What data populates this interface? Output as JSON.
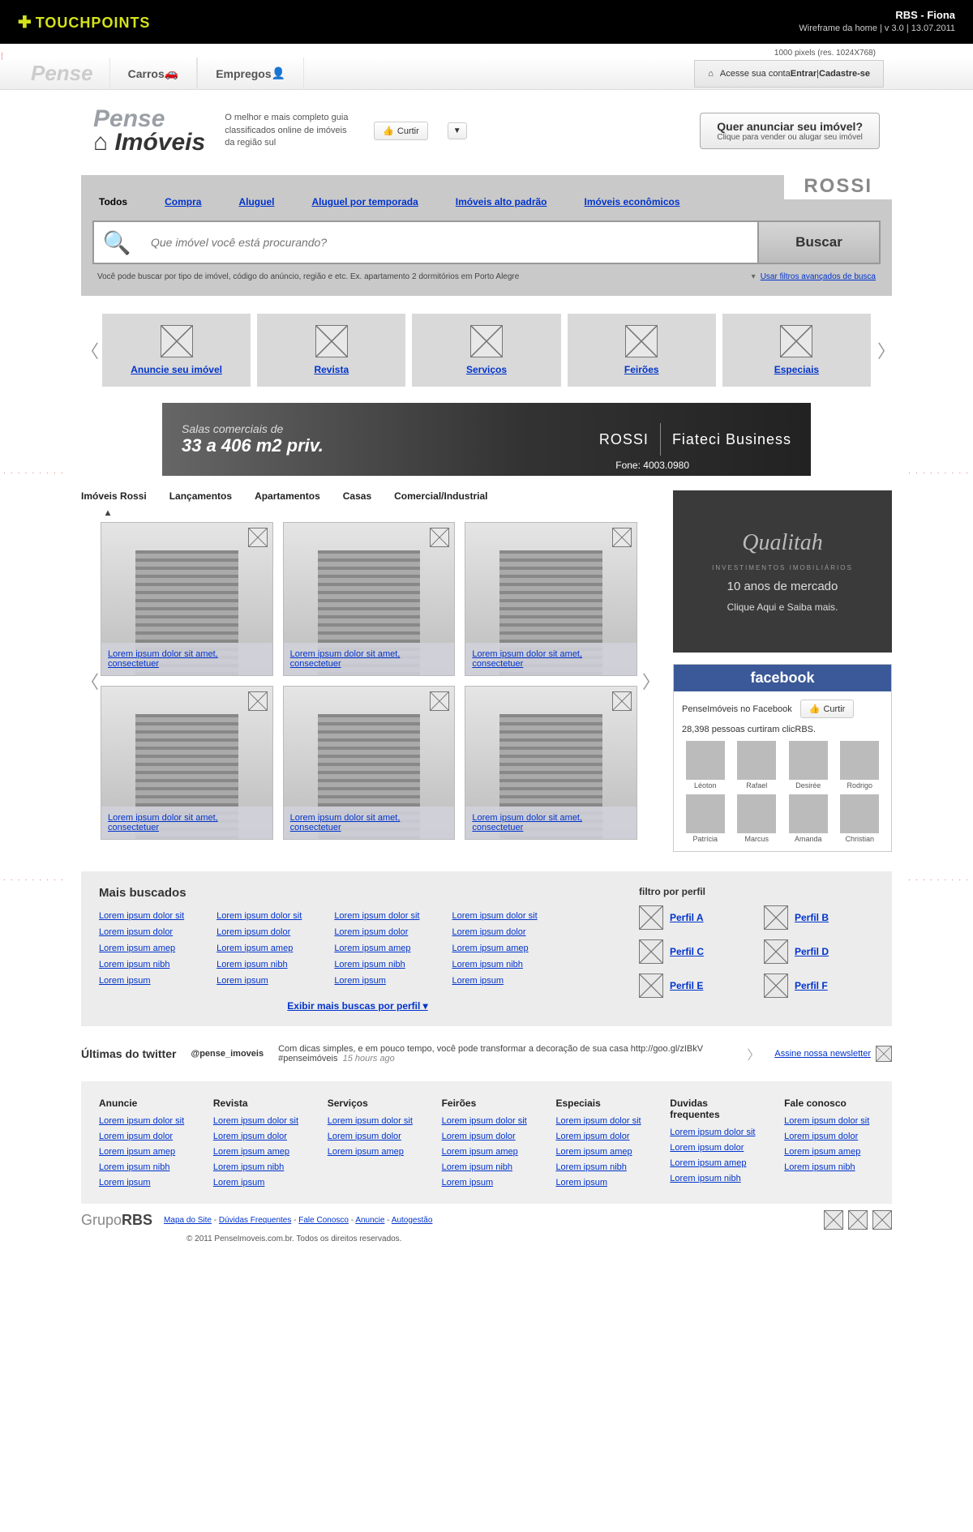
{
  "blackbar": {
    "brand": "TOUCHPOINTS",
    "right_title": "RBS - Fiona",
    "right_sub": "Wireframe da home | v 3.0 | 13.07.2011"
  },
  "pxhint": "1000 pixels (res. 1024X768)",
  "tabs": {
    "main": "Pense",
    "carros": "Carros",
    "empregos": "Empregos"
  },
  "account": {
    "pre": "Acesse sua conta ",
    "entrar": "Entrar",
    "sep": " | ",
    "cadastre": "Cadastre-se"
  },
  "logo": {
    "l1": "Pense",
    "l2": "Imóveis"
  },
  "slogan": "O melhor e mais completo guia classificados online de imóveis da região sul",
  "curtir": "Curtir",
  "anunciar": {
    "t1": "Quer anunciar seu imóvel?",
    "t2": "Clique para vender ou alugar seu imóvel"
  },
  "rossi": "ROSSI",
  "cats": [
    "Todos",
    "Compra",
    "Aluguel",
    "Aluguel por temporada",
    "Imóveis alto padrão",
    "Imóveis econômicos"
  ],
  "search": {
    "placeholder": "Que imóvel você está procurando?",
    "button": "Buscar",
    "hint": "Você pode buscar por tipo de imóvel, código do anúncio, região e etc. Ex. apartamento 2 dormitórios em Porto Alegre",
    "adv": "Usar filtros avançados de busca"
  },
  "promos": [
    "Anuncie seu imóvel",
    "Revista",
    "Serviços",
    "Feirões",
    "Especiais"
  ],
  "banner": {
    "line1": "Salas comerciais de",
    "line2": "33 a 406 m2 priv.",
    "brand": "ROSSI",
    "name": "Fiateci Business",
    "fone": "Fone: 4003.0980"
  },
  "subtabs": [
    "Imóveis Rossi",
    "Lançamentos",
    "Apartamentos",
    "Casas",
    "Comercial/Industrial"
  ],
  "card_caption": "Lorem ipsum dolor sit amet, consectetuer",
  "sidead": {
    "brand": "Qualitah",
    "sub": "INVESTIMENTOS IMOBILIÁRIOS",
    "yrs": "10 anos de mercado",
    "cta": "Clique Aqui e Saiba mais."
  },
  "fb": {
    "title": "facebook",
    "line": "PenseImóveis no Facebook",
    "curtir": "Curtir",
    "count": "28,398 pessoas curtiram clicRBS.",
    "names": [
      "Léoton",
      "Rafael",
      "Desirée",
      "Rodrigo",
      "Patrícia",
      "Marcus",
      "Amanda",
      "Christian"
    ]
  },
  "mb": {
    "title": "Mais buscados",
    "col": [
      "Lorem ipsum dolor sit",
      "Lorem ipsum dolor",
      "Lorem ipsum amep",
      "Lorem ipsum nibh",
      "Lorem ipsum"
    ],
    "exibir": "Exibir mais buscas por perfil  ▾",
    "filtro_title": "filtro por perfil",
    "perfis": [
      "Perfil A",
      "Perfil B",
      "Perfil C",
      "Perfil D",
      "Perfil E",
      "Perfil F"
    ]
  },
  "tw": {
    "title": "Últimas do twitter",
    "handle": "@pense_imoveis",
    "body": "Com dicas simples, e em pouco tempo, você pode transformar a decoração de sua casa http://goo.gl/zIBkV #penseimóveis",
    "ago": "15 hours ago",
    "news": "Assine nossa newsletter"
  },
  "ft": {
    "heads": [
      "Anuncie",
      "Revista",
      "Serviços",
      "Feirões",
      "Especiais",
      "Duvidas frequentes",
      "Fale conosco"
    ],
    "links": [
      "Lorem ipsum dolor sit",
      "Lorem ipsum dolor",
      "Lorem ipsum amep",
      "Lorem ipsum nibh",
      "Lorem ipsum"
    ]
  },
  "bottom": {
    "brand1": "Grupo",
    "brand2": "RBS",
    "links": [
      "Mapa do Site",
      "Dúvidas Frequentes",
      "Fale Conosco",
      "Anuncie",
      "Autogestão"
    ],
    "copy": "© 2011 PenseImoveis.com.br. Todos os direitos reservados."
  }
}
